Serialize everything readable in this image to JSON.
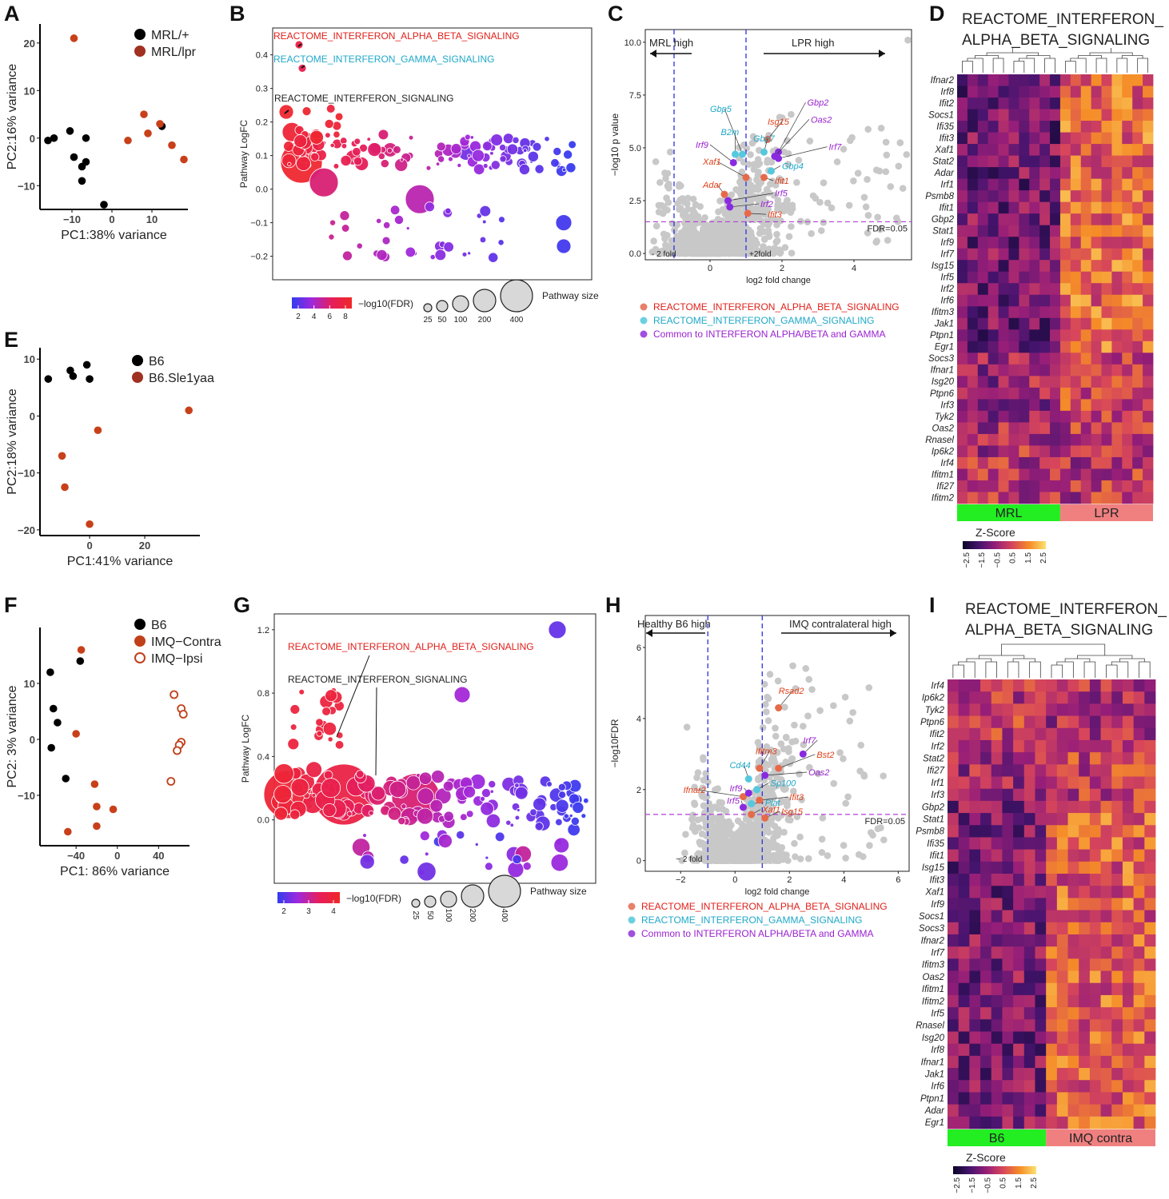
{
  "panels": {
    "A": {
      "letter": "A",
      "xlabel": "PC1:38% variance",
      "ylabel": "PC2:16% variance",
      "legend": [
        {
          "label": "MRL/+",
          "color": "#000000"
        },
        {
          "label": "MRL/lpr",
          "color": "#a03020"
        }
      ],
      "xticks": [
        -10,
        0,
        10
      ],
      "yticks": [
        20,
        10,
        0,
        -10
      ],
      "xlim": [
        -18,
        19
      ],
      "ylim": [
        -15,
        24
      ],
      "points": [
        {
          "x": -16,
          "y": -0.5,
          "g": 0
        },
        {
          "x": -14.5,
          "y": 0,
          "g": 0
        },
        {
          "x": -10.5,
          "y": 1.5,
          "g": 0
        },
        {
          "x": -9.5,
          "y": -4,
          "g": 0
        },
        {
          "x": -7.5,
          "y": -6,
          "g": 0
        },
        {
          "x": -6.5,
          "y": -5,
          "g": 0
        },
        {
          "x": -6.5,
          "y": 0,
          "g": 0
        },
        {
          "x": -7.5,
          "y": -9,
          "g": 0
        },
        {
          "x": -2,
          "y": -14,
          "g": 0
        },
        {
          "x": 12.5,
          "y": 2.5,
          "g": 0
        },
        {
          "x": -9.5,
          "y": 21,
          "g": 1
        },
        {
          "x": 4,
          "y": -0.5,
          "g": 1
        },
        {
          "x": 8,
          "y": 5,
          "g": 1
        },
        {
          "x": 9,
          "y": 1,
          "g": 1
        },
        {
          "x": 12,
          "y": 3,
          "g": 1
        },
        {
          "x": 15,
          "y": -1.5,
          "g": 1
        },
        {
          "x": 18,
          "y": -4.5,
          "g": 1
        }
      ]
    },
    "E": {
      "letter": "E",
      "xlabel": "PC1:41% variance",
      "ylabel": "PC2:18% variance",
      "legend": [
        {
          "label": "B6",
          "color": "#000000"
        },
        {
          "label": "B6.Sle1yaa",
          "color": "#a03020"
        }
      ],
      "xticks": [
        0,
        20
      ],
      "yticks": [
        10,
        0,
        -10,
        -20
      ],
      "xlim": [
        -18,
        40
      ],
      "ylim": [
        -21,
        12
      ],
      "points": [
        {
          "x": -15,
          "y": 6.5,
          "g": 0
        },
        {
          "x": -7,
          "y": 8,
          "g": 0
        },
        {
          "x": -6,
          "y": 7,
          "g": 0
        },
        {
          "x": -1,
          "y": 9,
          "g": 0
        },
        {
          "x": 0,
          "y": 6.5,
          "g": 0
        },
        {
          "x": -10,
          "y": -7,
          "g": 1
        },
        {
          "x": -9,
          "y": -12.5,
          "g": 1
        },
        {
          "x": 3,
          "y": -2.5,
          "g": 1
        },
        {
          "x": 0,
          "y": -19,
          "g": 1
        },
        {
          "x": 36,
          "y": 1,
          "g": 1
        }
      ]
    },
    "F": {
      "letter": "F",
      "xlabel": "PC1: 86% variance",
      "ylabel": "PC2: 3% variance",
      "legend": [
        {
          "label": "B6",
          "color": "#000000",
          "open": false
        },
        {
          "label": "IMQ−Contra",
          "color": "#c0401a",
          "open": false
        },
        {
          "label": "IMQ−Ipsi",
          "color": "#c0401a",
          "open": true
        }
      ],
      "xticks": [
        -40,
        0,
        40
      ],
      "ytick_labels": [
        "10",
        "0",
        "-10"
      ],
      "yticks": [
        10,
        0,
        -10
      ],
      "xlim": [
        -75,
        70
      ],
      "ylim": [
        -19,
        20
      ],
      "points": [
        {
          "x": -65,
          "y": 12,
          "g": 0
        },
        {
          "x": -62,
          "y": 5.5,
          "g": 0
        },
        {
          "x": -58,
          "y": 3,
          "g": 0
        },
        {
          "x": -64,
          "y": -1.5,
          "g": 0
        },
        {
          "x": -36,
          "y": 14,
          "g": 0
        },
        {
          "x": -50,
          "y": -7,
          "g": 0
        },
        {
          "x": -35,
          "y": 16,
          "g": 1
        },
        {
          "x": -40,
          "y": 1,
          "g": 1
        },
        {
          "x": -22,
          "y": -8,
          "g": 1
        },
        {
          "x": -20,
          "y": -12,
          "g": 1
        },
        {
          "x": -4,
          "y": -12.5,
          "g": 1
        },
        {
          "x": -20,
          "y": -15.5,
          "g": 1
        },
        {
          "x": -48,
          "y": -16.5,
          "g": 1
        },
        {
          "x": 55,
          "y": 8,
          "g": 2
        },
        {
          "x": 62,
          "y": 5.5,
          "g": 2
        },
        {
          "x": 64,
          "y": 4.5,
          "g": 2
        },
        {
          "x": 62,
          "y": -0.5,
          "g": 2
        },
        {
          "x": 60,
          "y": -1,
          "g": 2
        },
        {
          "x": 58,
          "y": -2,
          "g": 2
        },
        {
          "x": 52,
          "y": -7.5,
          "g": 2
        }
      ]
    },
    "B": {
      "letter": "B",
      "ylabel": "Pathway LogFC",
      "yticks": [
        0.4,
        0.3,
        0.2,
        0.1,
        0.0,
        -0.1,
        -0.2
      ],
      "ylim": [
        -0.27,
        0.48
      ],
      "labels": [
        {
          "text": "REACTOME_INTERFERON_ALPHA_BETA_SIGNALING",
          "color": "#e0201a"
        },
        {
          "text": "REACTOME_INTERFERON_GAMMA_SIGNALING",
          "color": "#20a8c8"
        },
        {
          "text": "REACTOME_INTERFERON_SIGNALING",
          "color": "#222222"
        }
      ],
      "color_legend_title": "−log10(FDR)",
      "color_ticks": [
        "2",
        "4",
        "6",
        "8"
      ],
      "size_legend_title": "Pathway size",
      "size_ticks": [
        "25",
        "50",
        "100",
        "200",
        "400"
      ]
    },
    "G": {
      "letter": "G",
      "ylabel": "Pathway LogFC",
      "yticks": [
        1.2,
        0.8,
        0.4,
        0.0
      ],
      "ylim": [
        -0.4,
        1.3
      ],
      "labels": [
        {
          "text": "REACTOME_INTERFERON_ALPHA_BETA_SIGNALING",
          "color": "#e0201a"
        },
        {
          "text": "REACTOME_INTERFERON_SIGNALING",
          "color": "#222222"
        }
      ],
      "color_legend_title": "−log10(FDR)",
      "color_ticks": [
        "2",
        "3",
        "4"
      ],
      "size_legend_title": "Pathway size",
      "size_ticks": [
        "25",
        "50",
        "100",
        "200",
        "400"
      ]
    },
    "C": {
      "letter": "C",
      "xlabel": "log2 fold change",
      "ylabel": "−log10 p value",
      "xticks": [
        0,
        2,
        4
      ],
      "yticks": [
        0.0,
        2.5,
        5.0,
        7.5,
        10.0
      ],
      "xlim": [
        -1.8,
        5.6
      ],
      "ylim": [
        -0.3,
        10.6
      ],
      "left_arrow": "MRL high",
      "right_arrow": "LPR high",
      "fdr_label": "FDR=0.05",
      "fold_minus": "- 2 fold",
      "fold_plus": "+2fold",
      "genes": [
        {
          "name": "Gbp5",
          "x": 0.9,
          "y": 4.7,
          "c": "cyan",
          "lx": 0.0,
          "ly": 6.7
        },
        {
          "name": "B2m",
          "x": 0.7,
          "y": 4.7,
          "c": "cyan",
          "lx": 0.3,
          "ly": 5.6
        },
        {
          "name": "Irf9",
          "x": 0.65,
          "y": 4.3,
          "c": "purple",
          "lx": -0.4,
          "ly": 5.0
        },
        {
          "name": "Xaf1",
          "x": 1.0,
          "y": 3.6,
          "c": "red",
          "lx": -0.2,
          "ly": 4.2
        },
        {
          "name": "Adar",
          "x": 0.4,
          "y": 2.8,
          "c": "red",
          "lx": -0.2,
          "ly": 3.1
        },
        {
          "name": "Isg15",
          "x": 1.6,
          "y": 5.4,
          "c": "red",
          "lx": 1.6,
          "ly": 6.1
        },
        {
          "name": "Gbp7",
          "x": 1.5,
          "y": 4.8,
          "c": "cyan",
          "lx": 1.2,
          "ly": 5.3
        },
        {
          "name": "Gbp2",
          "x": 1.9,
          "y": 4.8,
          "c": "purple",
          "lx": 2.7,
          "ly": 7.0
        },
        {
          "name": "Oas2",
          "x": 1.8,
          "y": 4.6,
          "c": "purple",
          "lx": 2.8,
          "ly": 6.2
        },
        {
          "name": "Irf7",
          "x": 1.9,
          "y": 4.5,
          "c": "purple",
          "lx": 3.3,
          "ly": 4.9
        },
        {
          "name": "Gbp4",
          "x": 1.7,
          "y": 3.9,
          "c": "cyan",
          "lx": 2.0,
          "ly": 4.0
        },
        {
          "name": "Ifit1",
          "x": 1.5,
          "y": 3.6,
          "c": "red",
          "lx": 1.8,
          "ly": 3.3
        },
        {
          "name": "Irf5",
          "x": 0.5,
          "y": 2.5,
          "c": "purple",
          "lx": 1.8,
          "ly": 2.7
        },
        {
          "name": "Irf2",
          "x": 0.55,
          "y": 2.2,
          "c": "purple",
          "lx": 1.4,
          "ly": 2.2
        },
        {
          "name": "Ifit3",
          "x": 1.05,
          "y": 1.9,
          "c": "red",
          "lx": 1.6,
          "ly": 1.7
        }
      ],
      "legend": [
        {
          "label": "REACTOME_INTERFERON_ALPHA_BETA_SIGNALING",
          "color": "#e8806a",
          "text_color": "#e0201a"
        },
        {
          "label": "REACTOME_INTERFERON_GAMMA_SIGNALING",
          "color": "#6ccfe0",
          "text_color": "#20a8c8"
        },
        {
          "label": "Common to INTERFERON ALPHA/BETA and GAMMA",
          "color": "#a050e0",
          "text_color": "#9a22d0"
        }
      ]
    },
    "H": {
      "letter": "H",
      "xlabel": "log2 fold change",
      "ylabel": "−log10FDR",
      "xticks": [
        -2,
        0,
        2,
        4,
        6
      ],
      "yticks": [
        0,
        2,
        4,
        6
      ],
      "xlim": [
        -3.3,
        6.4
      ],
      "ylim": [
        -0.3,
        6.9
      ],
      "left_arrow": "Healthy B6 high",
      "right_arrow": "IMQ contralateral high",
      "fdr_label": "FDR=0.05",
      "fold_minus": "− 2 fold",
      "genes": [
        {
          "name": "Rsad2",
          "x": 1.6,
          "y": 4.3,
          "c": "red",
          "lx": 1.6,
          "ly": 4.7
        },
        {
          "name": "Irf7",
          "x": 2.5,
          "y": 3.0,
          "c": "purple",
          "lx": 2.5,
          "ly": 3.3
        },
        {
          "name": "Bst2",
          "x": 1.6,
          "y": 2.6,
          "c": "red",
          "lx": 3.0,
          "ly": 2.9
        },
        {
          "name": "Ifitm3",
          "x": 0.9,
          "y": 2.6,
          "c": "red",
          "lx": 0.75,
          "ly": 3.0
        },
        {
          "name": "Oas2",
          "x": 1.1,
          "y": 2.4,
          "c": "purple",
          "lx": 2.7,
          "ly": 2.4
        },
        {
          "name": "Cd44",
          "x": 0.5,
          "y": 2.3,
          "c": "cyan",
          "lx": -0.2,
          "ly": 2.6
        },
        {
          "name": "Sp100",
          "x": 0.8,
          "y": 2.0,
          "c": "cyan",
          "lx": 1.3,
          "ly": 2.1
        },
        {
          "name": "Ifnar2",
          "x": 0.3,
          "y": 1.8,
          "c": "red",
          "lx": -1.9,
          "ly": 1.9
        },
        {
          "name": "Irf9",
          "x": 0.5,
          "y": 1.9,
          "c": "purple",
          "lx": -0.2,
          "ly": 1.95
        },
        {
          "name": "Plat",
          "x": 0.6,
          "y": 1.6,
          "c": "cyan",
          "lx": 1.1,
          "ly": 1.55
        },
        {
          "name": "Irf5",
          "x": 0.3,
          "y": 1.5,
          "c": "purple",
          "lx": -0.3,
          "ly": 1.6
        },
        {
          "name": "Ifit3",
          "x": 0.9,
          "y": 1.7,
          "c": "red",
          "lx": 2.0,
          "ly": 1.7
        },
        {
          "name": "Xaf1",
          "x": 0.6,
          "y": 1.3,
          "c": "red",
          "lx": 1.0,
          "ly": 1.35
        },
        {
          "name": "Isg15",
          "x": 1.1,
          "y": 1.2,
          "c": "red",
          "lx": 1.7,
          "ly": 1.3
        }
      ],
      "legend": [
        {
          "label": "REACTOME_INTERFERON_ALPHA_BETA_SIGNALING",
          "color": "#e8806a",
          "text_color": "#e0201a"
        },
        {
          "label": "REACTOME_INTERFERON_GAMMA_SIGNALING",
          "color": "#6ccfe0",
          "text_color": "#20a8c8"
        },
        {
          "label": "Common to INTERFERON ALPHA/BETA and GAMMA",
          "color": "#a050e0",
          "text_color": "#9a22d0"
        }
      ]
    },
    "D": {
      "letter": "D",
      "title_line1": "REACTOME_INTERFERON_",
      "title_line2": "ALPHA_BETA_SIGNALING",
      "rows": [
        "Ifnar2",
        "Irf8",
        "Ifit2",
        "Socs1",
        "Ifi35",
        "Ifit3",
        "Xaf1",
        "Stat2",
        "Adar",
        "Irf1",
        "Psmb8",
        "Ifit1",
        "Gbp2",
        "Stat1",
        "Irf9",
        "Irf7",
        "Isg15",
        "Irf5",
        "Irf2",
        "Irf6",
        "Ifitm3",
        "Jak1",
        "Ptpn1",
        "Egr1",
        "Socs3",
        "Ifnar1",
        "Isg20",
        "Ptpn6",
        "Irf3",
        "Tyk2",
        "Oas2",
        "Rnasel",
        "Ip6k2",
        "Irf4",
        "Ifitm1",
        "Ifi27",
        "Ifitm2"
      ],
      "groups": [
        {
          "label": "MRL",
          "color": "#22ee22"
        },
        {
          "label": "LPR",
          "color": "#f08080"
        }
      ],
      "n_left": 10,
      "n_right": 9,
      "zscore_title": "Z-Score",
      "zscore_ticks": [
        "-2.5",
        "-1.5",
        "-0.5",
        "0.5",
        "1.5",
        "2.5"
      ]
    },
    "I": {
      "letter": "I",
      "title_line1": "REACTOME_INTERFERON_",
      "title_line2": "ALPHA_BETA_SIGNALING",
      "rows": [
        "Irf4",
        "Ip6k2",
        "Tyk2",
        "Ptpn6",
        "Ifit2",
        "Irf2",
        "Stat2",
        "Ifi27",
        "Irf1",
        "Irf3",
        "Gbp2",
        "Stat1",
        "Psmb8",
        "Ifi35",
        "Ifit1",
        "Isg15",
        "Ifit3",
        "Xaf1",
        "Irf9",
        "Socs1",
        "Socs3",
        "Ifnar2",
        "Irf7",
        "Ifitm3",
        "Oas2",
        "Ifitm1",
        "Ifitm2",
        "Irf5",
        "Rnasel",
        "Isg20",
        "Irf8",
        "Ifnar1",
        "Jak1",
        "Irf6",
        "Ptpn1",
        "Adar",
        "Egr1"
      ],
      "groups": [
        {
          "label": "B6",
          "color": "#22ee22"
        },
        {
          "label": "IMQ contra",
          "color": "#f08080"
        }
      ],
      "n_left": 9,
      "n_right": 10,
      "zscore_title": "Z-Score",
      "zscore_ticks": [
        "-2.5",
        "-1.5",
        "-0.5",
        "0.5",
        "1.5",
        "2.5"
      ]
    }
  },
  "chart_data": [
    {
      "type": "scatter",
      "panel": "A",
      "title": "",
      "xlabel": "PC1:38% variance",
      "ylabel": "PC2:16% variance",
      "series": [
        {
          "name": "MRL/+"
        },
        {
          "name": "MRL/lpr"
        }
      ]
    },
    {
      "type": "scatter",
      "panel": "B",
      "title": "",
      "ylabel": "Pathway LogFC",
      "ylim": [
        -0.27,
        0.48
      ],
      "annotated": [
        "REACTOME_INTERFERON_ALPHA_BETA_SIGNALING",
        "REACTOME_INTERFERON_GAMMA_SIGNALING",
        "REACTOME_INTERFERON_SIGNALING"
      ]
    },
    {
      "type": "scatter",
      "panel": "C",
      "title": "",
      "xlabel": "log2 fold change",
      "ylabel": "−log10 p value"
    },
    {
      "type": "heatmap",
      "panel": "D",
      "title": "REACTOME_INTERFERON_ALPHA_BETA_SIGNALING",
      "groups": [
        "MRL",
        "LPR"
      ]
    },
    {
      "type": "scatter",
      "panel": "E",
      "xlabel": "PC1:41% variance",
      "ylabel": "PC2:18% variance",
      "series": [
        {
          "name": "B6"
        },
        {
          "name": "B6.Sle1yaa"
        }
      ]
    },
    {
      "type": "scatter",
      "panel": "F",
      "xlabel": "PC1: 86% variance",
      "ylabel": "PC2: 3% variance",
      "series": [
        {
          "name": "B6"
        },
        {
          "name": "IMQ−Contra"
        },
        {
          "name": "IMQ−Ipsi"
        }
      ]
    },
    {
      "type": "scatter",
      "panel": "G",
      "ylabel": "Pathway LogFC",
      "ylim": [
        -0.4,
        1.3
      ]
    },
    {
      "type": "scatter",
      "panel": "H",
      "xlabel": "log2 fold change",
      "ylabel": "−log10FDR"
    },
    {
      "type": "heatmap",
      "panel": "I",
      "title": "REACTOME_INTERFERON_ALPHA_BETA_SIGNALING",
      "groups": [
        "B6",
        "IMQ contra"
      ]
    }
  ]
}
